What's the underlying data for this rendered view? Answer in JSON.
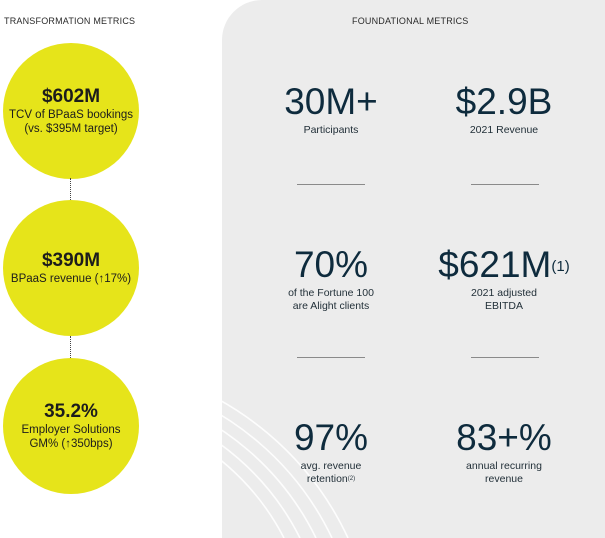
{
  "left": {
    "title": "TRANSFORMATION METRICS",
    "circles": [
      {
        "value": "$602M",
        "line1": "TCV of BPaaS bookings",
        "line2": "(vs. $395M target)"
      },
      {
        "value": "$390M",
        "line1": "BPaaS revenue (↑17%)"
      },
      {
        "value": "35.2%",
        "line1": "Employer Solutions",
        "line2": "GM% (↑350bps)"
      }
    ]
  },
  "right": {
    "title": "FOUNDATIONAL METRICS",
    "metrics": [
      {
        "value": "30M+",
        "label1": "Participants"
      },
      {
        "value": "$2.9B",
        "label1": "2021 Revenue"
      },
      {
        "value": "70%",
        "label1": "of the Fortune 100",
        "label2": "are Alight clients"
      },
      {
        "value": "$621M",
        "value_sup": "(1)",
        "label1": "2021 adjusted",
        "label2": "EBITDA"
      },
      {
        "value": "97%",
        "label1": "avg. revenue",
        "label2": "retention",
        "label2_sup": "(2)"
      },
      {
        "value": "83+%",
        "label1": "annual recurring",
        "label2": "revenue"
      }
    ]
  },
  "colors": {
    "circle_fill": "#e6e41a",
    "panel_bg": "#ececec",
    "metric_text": "#0e2b3d"
  }
}
